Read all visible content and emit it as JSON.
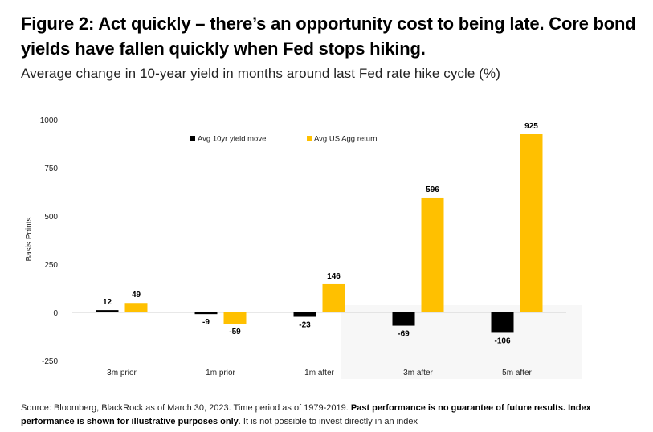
{
  "title": "Figure 2: Act quickly – there’s an opportunity cost to being late. Core bond yields have fallen quickly when Fed stops hiking.",
  "subtitle": "Average change in 10-year yield in months around last Fed rate hike cycle (%)",
  "footer": {
    "normal1": "Source: Bloomberg, BlackRock as of March 30, 2023. Time period as of 1979-2019. ",
    "bold": "Past performance is no guarantee of future results. Index performance is shown for illustrative purposes only",
    "normal2": ". It is not possible to invest directly in an index"
  },
  "chart_data": {
    "type": "bar",
    "title": "",
    "xlabel": "",
    "ylabel": "Basis Points",
    "ylim": [
      -250,
      1000
    ],
    "yticks": [
      -250,
      0,
      250,
      500,
      750,
      1000
    ],
    "categories": [
      "3m prior",
      "1m prior",
      "1m after",
      "3m after",
      "5m after"
    ],
    "series": [
      {
        "name": "Avg 10yr yield move",
        "color": "#000000",
        "values": [
          12,
          -9,
          -23,
          -69,
          -106
        ]
      },
      {
        "name": "Avg US Agg return",
        "color": "#FFC000",
        "values": [
          49,
          -59,
          146,
          596,
          925
        ]
      }
    ],
    "legend": "top-center",
    "grid": false
  }
}
